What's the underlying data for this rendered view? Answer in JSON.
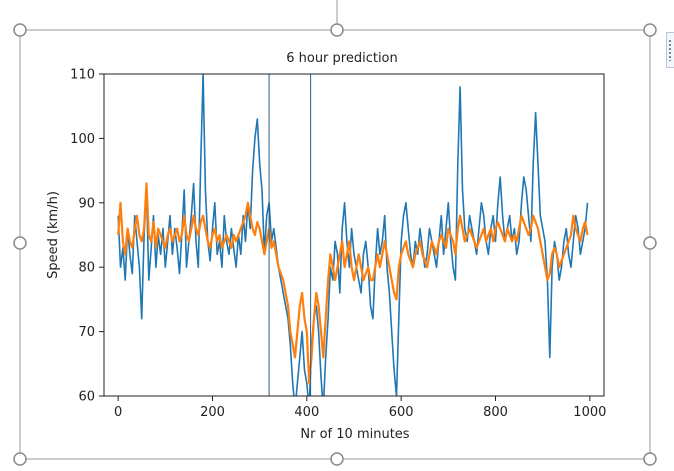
{
  "colors": {
    "series1": "#1f77b4",
    "series2": "#ff7f0e",
    "selection_border": "#9a9a9a",
    "handle_fill": "#ffffff",
    "handle_stroke": "#8a8a8a"
  },
  "icons": {
    "layout_options": "layout-options-icon",
    "rotate_handle": "rotate-handle-icon",
    "resize_handle": "resize-handle-icon"
  },
  "chart_data": {
    "type": "line",
    "title": "6 hour prediction",
    "xlabel": "Nr of 10 minutes",
    "ylabel": "Speed (km/h)",
    "xlim": [
      -30,
      1030
    ],
    "ylim": [
      60,
      110
    ],
    "xticks": [
      "0",
      "200",
      "400",
      "600",
      "800",
      "1000"
    ],
    "yticks": [
      "60",
      "70",
      "80",
      "90",
      "100",
      "110"
    ],
    "grid": false,
    "legend": "none",
    "vertical_lines": [
      320,
      408
    ],
    "series": [
      {
        "color": "#1f77b4",
        "x": [
          0,
          5,
          10,
          15,
          20,
          25,
          30,
          35,
          40,
          45,
          50,
          55,
          60,
          65,
          70,
          75,
          80,
          85,
          90,
          95,
          100,
          105,
          110,
          115,
          120,
          125,
          130,
          135,
          140,
          145,
          150,
          155,
          160,
          165,
          170,
          175,
          180,
          185,
          190,
          195,
          200,
          205,
          210,
          215,
          220,
          225,
          230,
          235,
          240,
          245,
          250,
          255,
          260,
          265,
          270,
          275,
          280,
          285,
          290,
          295,
          300,
          305,
          310,
          315,
          320,
          325,
          330,
          335,
          340,
          345,
          350,
          355,
          360,
          365,
          370,
          375,
          380,
          385,
          390,
          395,
          400,
          405,
          410,
          415,
          420,
          425,
          430,
          435,
          440,
          445,
          450,
          455,
          460,
          465,
          470,
          475,
          480,
          485,
          490,
          495,
          500,
          505,
          510,
          515,
          520,
          525,
          530,
          535,
          540,
          545,
          550,
          555,
          560,
          565,
          570,
          575,
          580,
          585,
          590,
          595,
          600,
          605,
          610,
          615,
          620,
          625,
          630,
          635,
          640,
          645,
          650,
          655,
          660,
          665,
          670,
          675,
          680,
          685,
          690,
          695,
          700,
          705,
          710,
          715,
          720,
          725,
          730,
          735,
          740,
          745,
          750,
          755,
          760,
          765,
          770,
          775,
          780,
          785,
          790,
          795,
          800,
          805,
          810,
          815,
          820,
          825,
          830,
          835,
          840,
          845,
          850,
          855,
          860,
          865,
          870,
          875,
          880,
          885,
          890,
          895,
          900,
          905,
          910,
          915,
          920,
          925,
          930,
          935,
          940,
          945,
          950,
          955,
          960,
          965,
          970,
          975,
          980,
          985,
          990,
          995
        ],
        "y": [
          88,
          80,
          83,
          78,
          86,
          82,
          79,
          88,
          84,
          80,
          72,
          85,
          92,
          78,
          83,
          88,
          80,
          85,
          82,
          86,
          80,
          84,
          88,
          82,
          86,
          83,
          79,
          85,
          92,
          80,
          84,
          88,
          93,
          84,
          80,
          96,
          110,
          92,
          84,
          81,
          86,
          90,
          82,
          84,
          80,
          88,
          84,
          82,
          86,
          83,
          80,
          85,
          82,
          88,
          84,
          90,
          86,
          95,
          100,
          103,
          96,
          92,
          82,
          88,
          90,
          84,
          86,
          83,
          80,
          78,
          76,
          74,
          72,
          68,
          62,
          58,
          62,
          66,
          70,
          64,
          62,
          58,
          68,
          72,
          74,
          70,
          63,
          58,
          66,
          72,
          80,
          78,
          84,
          82,
          76,
          86,
          90,
          84,
          80,
          86,
          82,
          80,
          78,
          76,
          82,
          84,
          80,
          74,
          72,
          80,
          86,
          82,
          84,
          88,
          80,
          76,
          70,
          64,
          60,
          72,
          84,
          88,
          90,
          86,
          82,
          80,
          84,
          82,
          86,
          83,
          80,
          82,
          86,
          84,
          82,
          80,
          84,
          88,
          82,
          86,
          90,
          84,
          80,
          78,
          96,
          108,
          92,
          86,
          84,
          88,
          86,
          84,
          82,
          86,
          90,
          88,
          84,
          82,
          86,
          88,
          84,
          90,
          94,
          88,
          84,
          86,
          88,
          84,
          86,
          82,
          84,
          90,
          94,
          92,
          88,
          84,
          96,
          104,
          96,
          88,
          86,
          84,
          78,
          66,
          80,
          84,
          82,
          78,
          80,
          84,
          86,
          82,
          80,
          84,
          88,
          86,
          82,
          84,
          86,
          90
        ]
      },
      {
        "color": "#ff7f0e",
        "x": [
          0,
          5,
          10,
          15,
          20,
          25,
          30,
          35,
          40,
          45,
          50,
          55,
          60,
          65,
          70,
          75,
          80,
          85,
          90,
          95,
          100,
          105,
          110,
          115,
          120,
          125,
          130,
          135,
          140,
          145,
          150,
          155,
          160,
          165,
          170,
          175,
          180,
          185,
          190,
          195,
          200,
          205,
          210,
          215,
          220,
          225,
          230,
          235,
          240,
          245,
          250,
          255,
          260,
          265,
          270,
          275,
          280,
          285,
          290,
          295,
          300,
          305,
          310,
          315,
          320,
          325,
          330,
          335,
          340,
          345,
          350,
          355,
          360,
          365,
          370,
          375,
          380,
          385,
          390,
          395,
          400,
          405,
          410,
          415,
          420,
          425,
          430,
          435,
          440,
          445,
          450,
          455,
          460,
          465,
          470,
          475,
          480,
          485,
          490,
          495,
          500,
          505,
          510,
          515,
          520,
          525,
          530,
          535,
          540,
          545,
          550,
          555,
          560,
          565,
          570,
          575,
          580,
          585,
          590,
          595,
          600,
          605,
          610,
          615,
          620,
          625,
          630,
          635,
          640,
          645,
          650,
          655,
          660,
          665,
          670,
          675,
          680,
          685,
          690,
          695,
          700,
          705,
          710,
          715,
          720,
          725,
          730,
          735,
          740,
          745,
          750,
          755,
          760,
          765,
          770,
          775,
          780,
          785,
          790,
          795,
          800,
          805,
          810,
          815,
          820,
          825,
          830,
          835,
          840,
          845,
          850,
          855,
          860,
          865,
          870,
          875,
          880,
          885,
          890,
          895,
          900,
          905,
          910,
          915,
          920,
          925,
          930,
          935,
          940,
          945,
          950,
          955,
          960,
          965,
          970,
          975,
          980,
          985,
          990,
          995
        ],
        "y": [
          85,
          90,
          84,
          82,
          86,
          84,
          83,
          86,
          88,
          85,
          84,
          86,
          93,
          85,
          84,
          87,
          83,
          86,
          85,
          84,
          83,
          85,
          86,
          84,
          85,
          86,
          84,
          85,
          88,
          85,
          84,
          86,
          88,
          86,
          85,
          87,
          88,
          86,
          84,
          83,
          85,
          86,
          84,
          85,
          83,
          84,
          85,
          84,
          83,
          85,
          84,
          85,
          86,
          87,
          88,
          90,
          88,
          86,
          85,
          87,
          86,
          84,
          82,
          84,
          86,
          83,
          84,
          82,
          80,
          79,
          78,
          76,
          74,
          70,
          68,
          66,
          70,
          74,
          76,
          72,
          70,
          62,
          66,
          72,
          76,
          74,
          70,
          66,
          72,
          78,
          82,
          80,
          78,
          80,
          82,
          84,
          80,
          82,
          84,
          80,
          78,
          80,
          82,
          80,
          78,
          79,
          80,
          78,
          78,
          80,
          82,
          80,
          82,
          84,
          82,
          80,
          78,
          76,
          75,
          80,
          82,
          83,
          84,
          82,
          81,
          80,
          82,
          83,
          84,
          82,
          81,
          80,
          82,
          84,
          83,
          82,
          84,
          85,
          84,
          83,
          86,
          85,
          84,
          82,
          86,
          88,
          86,
          84,
          85,
          86,
          85,
          84,
          83,
          84,
          85,
          86,
          84,
          85,
          86,
          84,
          86,
          87,
          86,
          85,
          84,
          86,
          85,
          84,
          85,
          84,
          86,
          88,
          87,
          86,
          85,
          86,
          88,
          87,
          86,
          84,
          82,
          80,
          78,
          79,
          82,
          83,
          82,
          80,
          81,
          82,
          83,
          84,
          85,
          88,
          86,
          85,
          84,
          86,
          87,
          85
        ]
      }
    ]
  }
}
